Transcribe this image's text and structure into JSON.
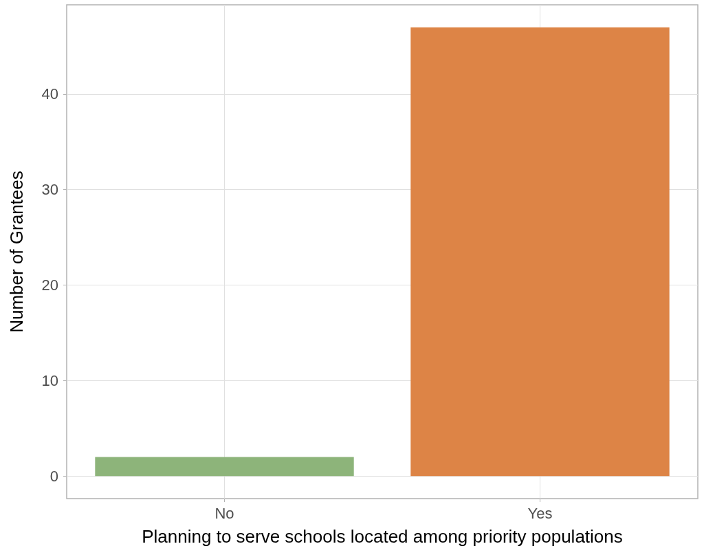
{
  "chart_data": {
    "type": "bar",
    "xlabel": "Planning to serve schools located among priority populations",
    "ylabel": "Number of Grantees",
    "categories": [
      "No",
      "Yes"
    ],
    "values": [
      2,
      47
    ],
    "colors": [
      "#8db47a",
      "#dd8446"
    ],
    "ylim": [
      -2.35,
      49.35
    ],
    "yticks": [
      0,
      10,
      20,
      30,
      40
    ],
    "grid": true
  }
}
